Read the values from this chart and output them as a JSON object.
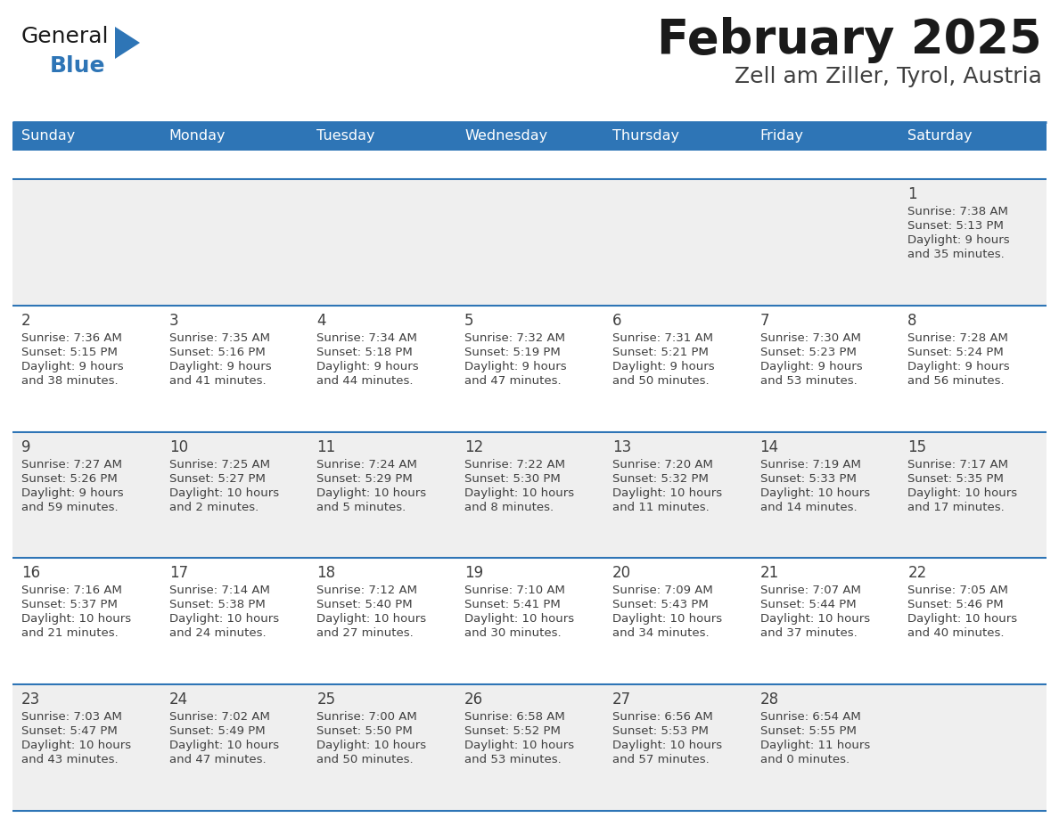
{
  "title": "February 2025",
  "subtitle": "Zell am Ziller, Tyrol, Austria",
  "header_bg": "#2E75B6",
  "header_text": "#FFFFFF",
  "day_names": [
    "Sunday",
    "Monday",
    "Tuesday",
    "Wednesday",
    "Thursday",
    "Friday",
    "Saturday"
  ],
  "cell_bg_row0": "#EFEFEF",
  "cell_bg_row1": "#FFFFFF",
  "cell_bg_row2": "#EFEFEF",
  "cell_bg_row3": "#FFFFFF",
  "cell_bg_row4": "#EFEFEF",
  "line_color": "#2E75B6",
  "text_color": "#404040",
  "logo_general_color": "#1a1a1a",
  "logo_blue_color": "#2E75B6",
  "days": [
    {
      "day": 1,
      "col": 6,
      "row": 0,
      "sunrise": "7:38 AM",
      "sunset": "5:13 PM",
      "daylight": "9 hours and 35 minutes."
    },
    {
      "day": 2,
      "col": 0,
      "row": 1,
      "sunrise": "7:36 AM",
      "sunset": "5:15 PM",
      "daylight": "9 hours and 38 minutes."
    },
    {
      "day": 3,
      "col": 1,
      "row": 1,
      "sunrise": "7:35 AM",
      "sunset": "5:16 PM",
      "daylight": "9 hours and 41 minutes."
    },
    {
      "day": 4,
      "col": 2,
      "row": 1,
      "sunrise": "7:34 AM",
      "sunset": "5:18 PM",
      "daylight": "9 hours and 44 minutes."
    },
    {
      "day": 5,
      "col": 3,
      "row": 1,
      "sunrise": "7:32 AM",
      "sunset": "5:19 PM",
      "daylight": "9 hours and 47 minutes."
    },
    {
      "day": 6,
      "col": 4,
      "row": 1,
      "sunrise": "7:31 AM",
      "sunset": "5:21 PM",
      "daylight": "9 hours and 50 minutes."
    },
    {
      "day": 7,
      "col": 5,
      "row": 1,
      "sunrise": "7:30 AM",
      "sunset": "5:23 PM",
      "daylight": "9 hours and 53 minutes."
    },
    {
      "day": 8,
      "col": 6,
      "row": 1,
      "sunrise": "7:28 AM",
      "sunset": "5:24 PM",
      "daylight": "9 hours and 56 minutes."
    },
    {
      "day": 9,
      "col": 0,
      "row": 2,
      "sunrise": "7:27 AM",
      "sunset": "5:26 PM",
      "daylight": "9 hours and 59 minutes."
    },
    {
      "day": 10,
      "col": 1,
      "row": 2,
      "sunrise": "7:25 AM",
      "sunset": "5:27 PM",
      "daylight": "10 hours and 2 minutes."
    },
    {
      "day": 11,
      "col": 2,
      "row": 2,
      "sunrise": "7:24 AM",
      "sunset": "5:29 PM",
      "daylight": "10 hours and 5 minutes."
    },
    {
      "day": 12,
      "col": 3,
      "row": 2,
      "sunrise": "7:22 AM",
      "sunset": "5:30 PM",
      "daylight": "10 hours and 8 minutes."
    },
    {
      "day": 13,
      "col": 4,
      "row": 2,
      "sunrise": "7:20 AM",
      "sunset": "5:32 PM",
      "daylight": "10 hours and 11 minutes."
    },
    {
      "day": 14,
      "col": 5,
      "row": 2,
      "sunrise": "7:19 AM",
      "sunset": "5:33 PM",
      "daylight": "10 hours and 14 minutes."
    },
    {
      "day": 15,
      "col": 6,
      "row": 2,
      "sunrise": "7:17 AM",
      "sunset": "5:35 PM",
      "daylight": "10 hours and 17 minutes."
    },
    {
      "day": 16,
      "col": 0,
      "row": 3,
      "sunrise": "7:16 AM",
      "sunset": "5:37 PM",
      "daylight": "10 hours and 21 minutes."
    },
    {
      "day": 17,
      "col": 1,
      "row": 3,
      "sunrise": "7:14 AM",
      "sunset": "5:38 PM",
      "daylight": "10 hours and 24 minutes."
    },
    {
      "day": 18,
      "col": 2,
      "row": 3,
      "sunrise": "7:12 AM",
      "sunset": "5:40 PM",
      "daylight": "10 hours and 27 minutes."
    },
    {
      "day": 19,
      "col": 3,
      "row": 3,
      "sunrise": "7:10 AM",
      "sunset": "5:41 PM",
      "daylight": "10 hours and 30 minutes."
    },
    {
      "day": 20,
      "col": 4,
      "row": 3,
      "sunrise": "7:09 AM",
      "sunset": "5:43 PM",
      "daylight": "10 hours and 34 minutes."
    },
    {
      "day": 21,
      "col": 5,
      "row": 3,
      "sunrise": "7:07 AM",
      "sunset": "5:44 PM",
      "daylight": "10 hours and 37 minutes."
    },
    {
      "day": 22,
      "col": 6,
      "row": 3,
      "sunrise": "7:05 AM",
      "sunset": "5:46 PM",
      "daylight": "10 hours and 40 minutes."
    },
    {
      "day": 23,
      "col": 0,
      "row": 4,
      "sunrise": "7:03 AM",
      "sunset": "5:47 PM",
      "daylight": "10 hours and 43 minutes."
    },
    {
      "day": 24,
      "col": 1,
      "row": 4,
      "sunrise": "7:02 AM",
      "sunset": "5:49 PM",
      "daylight": "10 hours and 47 minutes."
    },
    {
      "day": 25,
      "col": 2,
      "row": 4,
      "sunrise": "7:00 AM",
      "sunset": "5:50 PM",
      "daylight": "10 hours and 50 minutes."
    },
    {
      "day": 26,
      "col": 3,
      "row": 4,
      "sunrise": "6:58 AM",
      "sunset": "5:52 PM",
      "daylight": "10 hours and 53 minutes."
    },
    {
      "day": 27,
      "col": 4,
      "row": 4,
      "sunrise": "6:56 AM",
      "sunset": "5:53 PM",
      "daylight": "10 hours and 57 minutes."
    },
    {
      "day": 28,
      "col": 5,
      "row": 4,
      "sunrise": "6:54 AM",
      "sunset": "5:55 PM",
      "daylight": "11 hours and 0 minutes."
    }
  ]
}
